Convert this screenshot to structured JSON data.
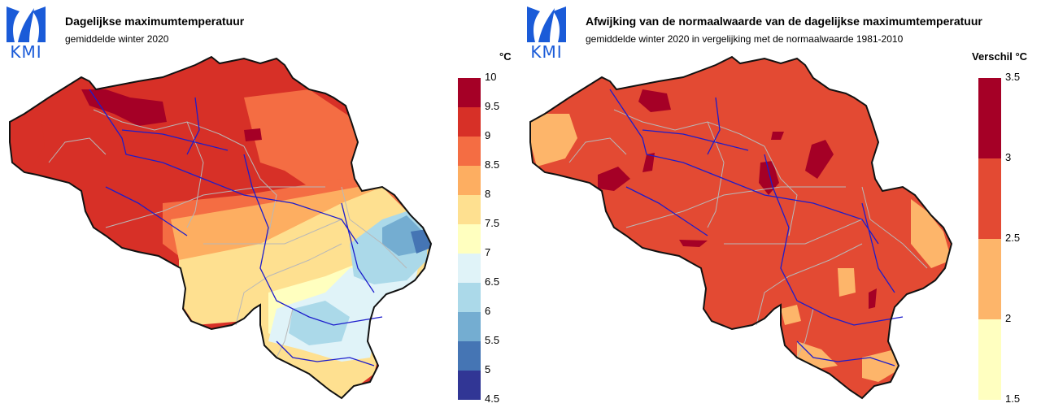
{
  "left": {
    "logo": {
      "text": "KMI",
      "icon": "kmi-logo-icon"
    },
    "title": "Dagelijkse maximumtemperatuur",
    "subtitle": "gemiddelde winter 2020",
    "unit": "°C",
    "legend": {
      "ticks": [
        "10",
        "9.5",
        "9",
        "8.5",
        "8",
        "7.5",
        "7",
        "6.5",
        "6",
        "5.5",
        "5",
        "4.5"
      ],
      "colors": [
        "#a50026",
        "#d73027",
        "#f46d43",
        "#fdae61",
        "#fee090",
        "#ffffbf",
        "#e0f3f8",
        "#abd9e9",
        "#74add1",
        "#4575b4",
        "#313695"
      ]
    }
  },
  "right": {
    "logo": {
      "text": "KMI",
      "icon": "kmi-logo-icon"
    },
    "title": "Afwijking van de normaalwaarde van de dagelijkse maximumtemperatuur",
    "subtitle": "gemiddelde winter 2020 in vergelijking met de normaalwaarde 1981-2010",
    "unit": "Verschil °C",
    "legend": {
      "ticks": [
        "3.5",
        "3",
        "2.5",
        "2",
        "1.5"
      ],
      "colors": [
        "#a50026",
        "#e34a33",
        "#fdb56a",
        "#ffffc0"
      ]
    }
  },
  "colors": {
    "logo_blue": "#1a5bd8",
    "border": "#111111",
    "province_lines": "#b8b8b8",
    "rivers": "#1c1ccc"
  }
}
